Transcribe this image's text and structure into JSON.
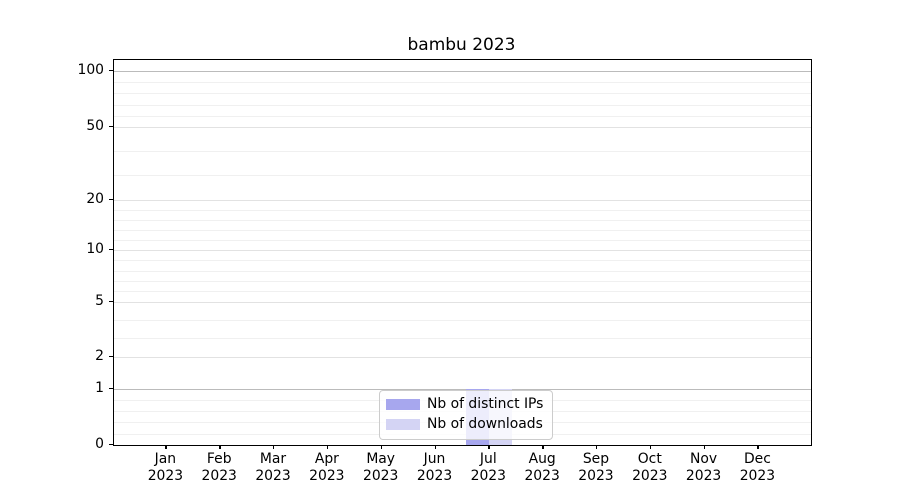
{
  "figure": {
    "title": "bambu 2023"
  },
  "chart_data": {
    "type": "bar",
    "title": "bambu 2023",
    "xlabel": "",
    "ylabel": "",
    "categories": [
      "Jan 2023",
      "Feb 2023",
      "Mar 2023",
      "Apr 2023",
      "May 2023",
      "Jun 2023",
      "Jul 2023",
      "Aug 2023",
      "Sep 2023",
      "Oct 2023",
      "Nov 2023",
      "Dec 2023"
    ],
    "x_months": [
      "Jan",
      "Feb",
      "Mar",
      "Apr",
      "May",
      "Jun",
      "Jul",
      "Aug",
      "Sep",
      "Oct",
      "Nov",
      "Dec"
    ],
    "x_year": "2023",
    "series": [
      {
        "name": "Nb of distinct IPs",
        "color": "#a7a7ee",
        "values": [
          0,
          0,
          0,
          0,
          0,
          0,
          1,
          0,
          0,
          0,
          0,
          0
        ]
      },
      {
        "name": "Nb of downloads",
        "color": "#d4d4f4",
        "values": [
          0,
          0,
          0,
          0,
          0,
          0,
          1,
          0,
          0,
          0,
          0,
          0
        ]
      }
    ],
    "yscale": "log-like with linear 0-1 segment",
    "yticks": [
      100,
      50,
      20,
      10,
      5,
      2,
      1,
      0
    ],
    "yticks_minor": [
      90,
      80,
      70,
      60,
      40,
      30,
      18,
      16,
      14,
      12,
      9,
      8,
      7,
      6,
      4,
      3,
      0.8,
      0.6,
      0.4,
      0.2
    ],
    "ylim": [
      0,
      115
    ],
    "grid": true,
    "legend": {
      "position": "lower center",
      "entries": [
        "Nb of distinct IPs",
        "Nb of downloads"
      ]
    },
    "colors": {
      "grid_minor": "#f0f0f0",
      "grid_major": "#e2e2e2",
      "grid_strong": "#bbbbbb",
      "spine": "#000000",
      "legend_border": "#cccccc"
    }
  }
}
